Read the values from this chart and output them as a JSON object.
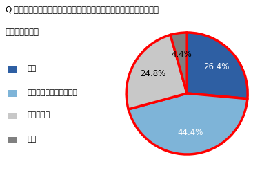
{
  "title_line1": "Q.暑い時期の食事が、炭水化物中心のメニューになってしまうことは",
  "title_line2": "　ありますか。",
  "labels": [
    "ある",
    "どちらかといえば、ある",
    "あまりない",
    "ない"
  ],
  "values": [
    26.4,
    44.4,
    24.8,
    4.4
  ],
  "colors": [
    "#2E5FA3",
    "#7EB4D8",
    "#C8C8C8",
    "#808080"
  ],
  "pct_labels": [
    "26.4%",
    "44.4%",
    "24.8%",
    "4.4%"
  ],
  "pct_colors": [
    "white",
    "white",
    "black",
    "black"
  ],
  "legend_labels": [
    "ある",
    "どちらかといえば、ある",
    "あまりない",
    "ない"
  ],
  "pie_edge_color": "#FF0000",
  "pie_linewidth": 2.5,
  "background_color": "#FFFFFF",
  "title_fontsize": 8.5,
  "legend_fontsize": 8.0,
  "pct_fontsize": 8.5,
  "startangle": 90
}
